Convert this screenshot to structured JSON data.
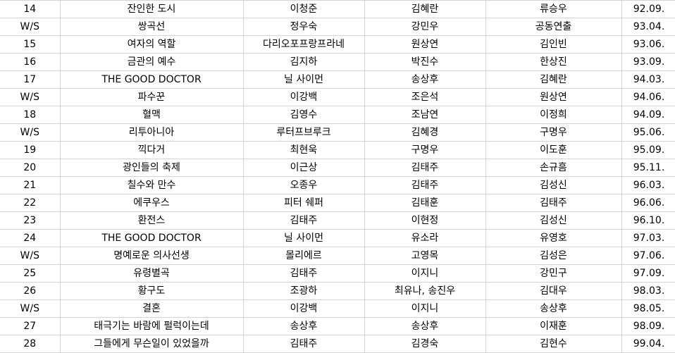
{
  "rows": [
    [
      "14",
      "잔인한 도시",
      "이청준",
      "김혜란",
      "류승우",
      "92.09."
    ],
    [
      "W/S",
      "쌍곡선",
      "정우숙",
      "강민우",
      "공동연출",
      "93.04."
    ],
    [
      "15",
      "여자의 역할",
      "다리오포프랑프라네",
      "원상연",
      "김인빈",
      "93.06."
    ],
    [
      "16",
      "금관의 예수",
      "김지하",
      "박진수",
      "한상진",
      "93.09."
    ],
    [
      "17",
      "THE GOOD DOCTOR",
      "닐 사이먼",
      "송상후",
      "김혜란",
      "94.03."
    ],
    [
      "W/S",
      "파수꾼",
      "이강백",
      "조은석",
      "원상연",
      "94.06."
    ],
    [
      "18",
      "혈맥",
      "김영수",
      "조남연",
      "이정희",
      "94.09."
    ],
    [
      "W/S",
      "리투아니아",
      "루터프브루크",
      "김혜경",
      "구명우",
      "95.06."
    ],
    [
      "19",
      "끽다거",
      "최현욱",
      "구명우",
      "이도훈",
      "95.09."
    ],
    [
      "20",
      "광인들의 축제",
      "이근상",
      "김태주",
      "손규흠",
      "95.11."
    ],
    [
      "21",
      "칠수와 만수",
      "오종우",
      "김태주",
      "김성신",
      "96.03."
    ],
    [
      "22",
      "에쿠우스",
      "피터 쉐퍼",
      "김태훈",
      "김태주",
      "96.06."
    ],
    [
      "23",
      "환전스",
      "김태주",
      "이현정",
      "김성신",
      "96.10."
    ],
    [
      "24",
      "THE GOOD DOCTOR",
      "닐 사이먼",
      "유소라",
      "유영호",
      "97.03."
    ],
    [
      "W/S",
      "명예로운 의사선생",
      "몰리에르",
      "고영목",
      "김성은",
      "97.06."
    ],
    [
      "25",
      "유령별곡",
      "김태주",
      "이지니",
      "강민구",
      "97.09."
    ],
    [
      "26",
      "황구도",
      "조광하",
      "최유나, 송진우",
      "김대우",
      "98.03."
    ],
    [
      "W/S",
      "결혼",
      "이강백",
      "이지니",
      "송상후",
      "98.05."
    ],
    [
      "27",
      "태극기는 바람에 펄럭이는데",
      "송상후",
      "송상후",
      "이재훈",
      "98.09."
    ],
    [
      "28",
      "그들에게 무슨일이 있었을까",
      "김태주",
      "김경숙",
      "김현수",
      "99.04."
    ]
  ]
}
